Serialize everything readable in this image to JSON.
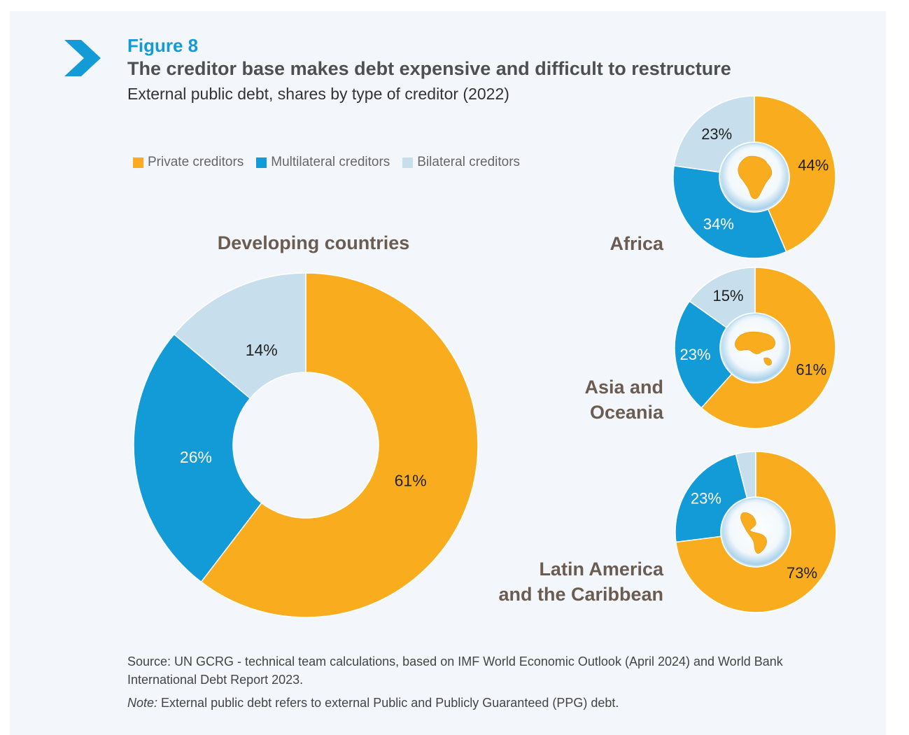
{
  "figure_label": "Figure 8",
  "title": "The creditor base makes debt expensive and difficult to restructure",
  "subtitle": "External public debt, shares by type of creditor (2022)",
  "colors": {
    "private": "#f9ad1e",
    "multilateral": "#139bd8",
    "bilateral": "#c7deec"
  },
  "legend": [
    {
      "label": "Private creditors",
      "color": "#f9ad1e"
    },
    {
      "label": "Multilateral creditors",
      "color": "#139bd8"
    },
    {
      "label": "Bilateral creditors",
      "color": "#c7deec"
    }
  ],
  "chart_data": [
    {
      "type": "pie",
      "donut": true,
      "title": "Developing countries",
      "categories": [
        "Private creditors",
        "Multilateral creditors",
        "Bilateral creditors"
      ],
      "values": [
        61,
        26,
        14
      ],
      "labels": [
        "61%",
        "26%",
        "14%"
      ]
    },
    {
      "type": "pie",
      "donut": true,
      "title": "Africa",
      "categories": [
        "Private creditors",
        "Multilateral creditors",
        "Bilateral creditors"
      ],
      "values": [
        44,
        34,
        23
      ],
      "labels": [
        "44%",
        "34%",
        "23%"
      ]
    },
    {
      "type": "pie",
      "donut": true,
      "title": "Asia and Oceania",
      "title_lines": [
        "Asia and",
        "Oceania"
      ],
      "categories": [
        "Private creditors",
        "Multilateral creditors",
        "Bilateral creditors"
      ],
      "values": [
        61,
        23,
        15
      ],
      "labels": [
        "61%",
        "23%",
        "15%"
      ]
    },
    {
      "type": "pie",
      "donut": true,
      "title": "Latin America and the Caribbean",
      "title_lines": [
        "Latin America",
        "and the Caribbean"
      ],
      "categories": [
        "Private creditors",
        "Multilateral creditors",
        "Bilateral creditors"
      ],
      "values": [
        73,
        23,
        4
      ],
      "labels": [
        "73%",
        "23%",
        ""
      ]
    }
  ],
  "source": "Source: UN GCRG - technical team calculations, based on IMF World Economic Outlook (April 2024) and World Bank International Debt Report 2023.",
  "note_label": "Note:",
  "note_text": " External public debt refers to external Public and Publicly Guaranteed (PPG) debt."
}
